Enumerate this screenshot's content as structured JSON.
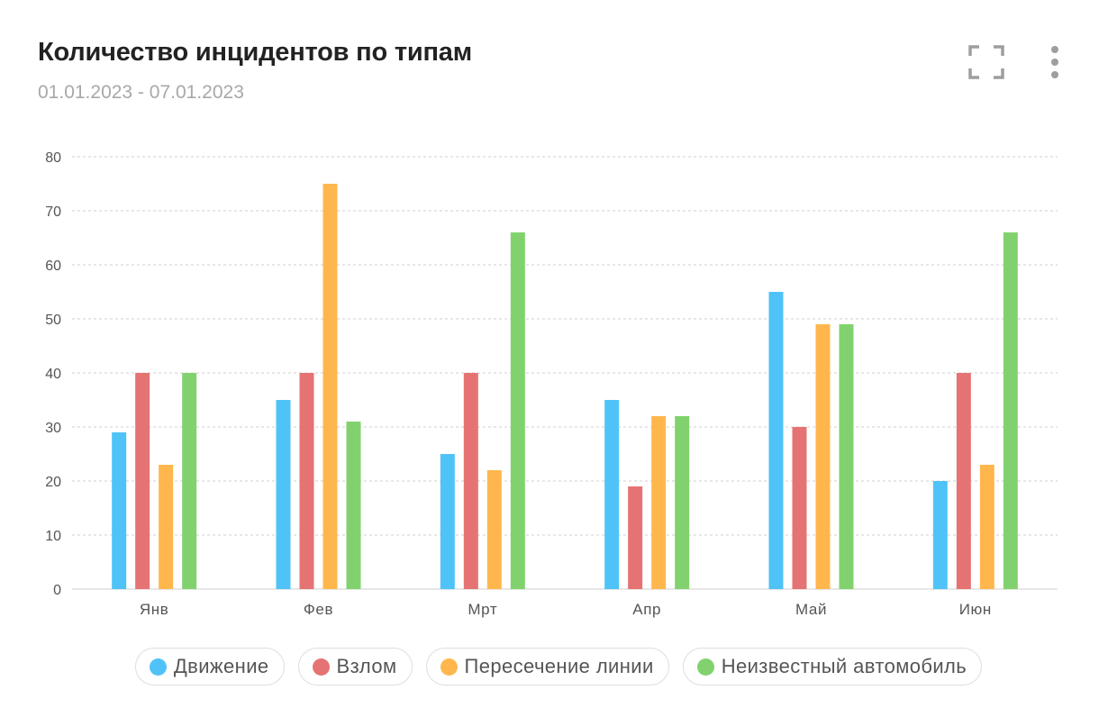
{
  "header": {
    "title": "Количество инцидентов по типам",
    "date_range": "01.01.2023 - 07.01.2023",
    "actions": [
      {
        "icon": "fullscreen-icon"
      },
      {
        "icon": "more-vertical-icon"
      }
    ]
  },
  "colors": {
    "grid": "#cfcfcf",
    "axis_text": "#555555",
    "icon": "#9e9e9e"
  },
  "chart_data": {
    "type": "bar",
    "title": "Количество инцидентов по типам",
    "subtitle": "01.01.2023 - 07.01.2023",
    "xlabel": "",
    "ylabel": "",
    "categories": [
      "Янв",
      "Фев",
      "Мрт",
      "Апр",
      "Май",
      "Июн"
    ],
    "ylim": [
      0,
      80
    ],
    "yticks": [
      0,
      10,
      20,
      30,
      40,
      50,
      60,
      70,
      80
    ],
    "grid": true,
    "legend_position": "bottom",
    "series": [
      {
        "name": "Движение",
        "color": "#4fc3f7",
        "values": [
          29,
          35,
          25,
          35,
          55,
          20
        ]
      },
      {
        "name": "Взлом",
        "color": "#e57373",
        "values": [
          40,
          40,
          40,
          19,
          30,
          40
        ]
      },
      {
        "name": "Пересечение линии",
        "color": "#ffb74d",
        "values": [
          23,
          75,
          22,
          32,
          49,
          23
        ]
      },
      {
        "name": "Неизвестный автомобиль",
        "color": "#81d26e",
        "values": [
          40,
          31,
          66,
          32,
          49,
          66
        ]
      }
    ]
  }
}
